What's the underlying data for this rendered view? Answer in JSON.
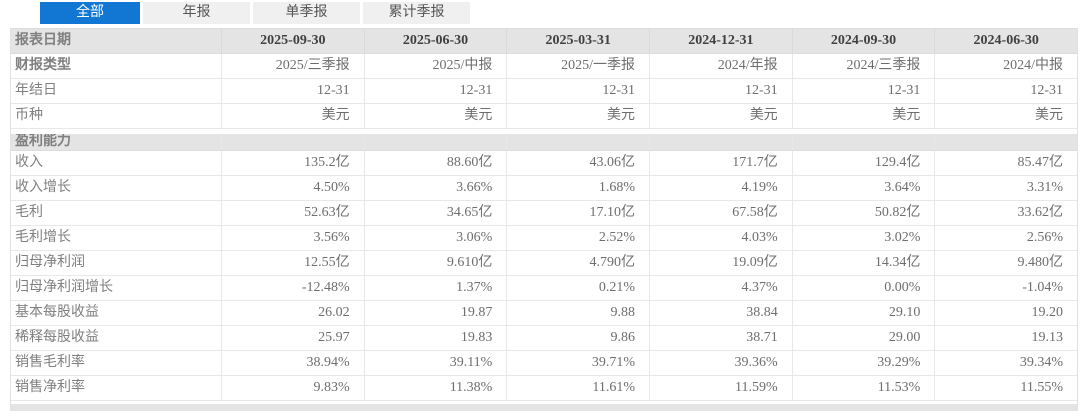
{
  "tabs": [
    {
      "label": "全部",
      "active": true
    },
    {
      "label": "年报",
      "active": false
    },
    {
      "label": "单季报",
      "active": false
    },
    {
      "label": "累计季报",
      "active": false
    }
  ],
  "table": {
    "header_label": "报表日期",
    "dates": [
      "2025-09-30",
      "2025-06-30",
      "2025-03-31",
      "2024-12-31",
      "2024-09-30",
      "2024-06-30"
    ],
    "rows": [
      {
        "label": "财报类型",
        "label_bold": true,
        "values": [
          "2025/三季报",
          "2025/中报",
          "2025/一季报",
          "2024/年报",
          "2024/三季报",
          "2024/中报"
        ]
      },
      {
        "label": "年结日",
        "values": [
          "12-31",
          "12-31",
          "12-31",
          "12-31",
          "12-31",
          "12-31"
        ]
      },
      {
        "label": "币种",
        "values": [
          "美元",
          "美元",
          "美元",
          "美元",
          "美元",
          "美元"
        ]
      },
      {
        "section": "盈利能力"
      },
      {
        "label": "收入",
        "values": [
          "135.2亿",
          "88.60亿",
          "43.06亿",
          "171.7亿",
          "129.4亿",
          "85.47亿"
        ]
      },
      {
        "label": "收入增长",
        "values": [
          "4.50%",
          "3.66%",
          "1.68%",
          "4.19%",
          "3.64%",
          "3.31%"
        ]
      },
      {
        "label": "毛利",
        "values": [
          "52.63亿",
          "34.65亿",
          "17.10亿",
          "67.58亿",
          "50.82亿",
          "33.62亿"
        ]
      },
      {
        "label": "毛利增长",
        "values": [
          "3.56%",
          "3.06%",
          "2.52%",
          "4.03%",
          "3.02%",
          "2.56%"
        ]
      },
      {
        "label": "归母净利润",
        "values": [
          "12.55亿",
          "9.610亿",
          "4.790亿",
          "19.09亿",
          "14.34亿",
          "9.480亿"
        ]
      },
      {
        "label": "归母净利润增长",
        "values": [
          "-12.48%",
          "1.37%",
          "0.21%",
          "4.37%",
          "0.00%",
          "-1.04%"
        ]
      },
      {
        "label": "基本每股收益",
        "values": [
          "26.02",
          "19.87",
          "9.88",
          "38.84",
          "29.10",
          "19.20"
        ]
      },
      {
        "label": "稀释每股收益",
        "values": [
          "25.97",
          "19.83",
          "9.86",
          "38.71",
          "29.00",
          "19.13"
        ]
      },
      {
        "label": "销售毛利率",
        "values": [
          "38.94%",
          "39.11%",
          "39.71%",
          "39.36%",
          "39.29%",
          "39.34%"
        ]
      },
      {
        "label": "销售净利率",
        "values": [
          "9.83%",
          "11.38%",
          "11.61%",
          "11.59%",
          "11.53%",
          "11.55%"
        ]
      }
    ]
  },
  "colors": {
    "accent_blue": "#1277d3",
    "header_grey": "#e4e4e4",
    "tab_inactive_grey": "#f0f0f0",
    "border_grey": "#e8e8e8"
  }
}
